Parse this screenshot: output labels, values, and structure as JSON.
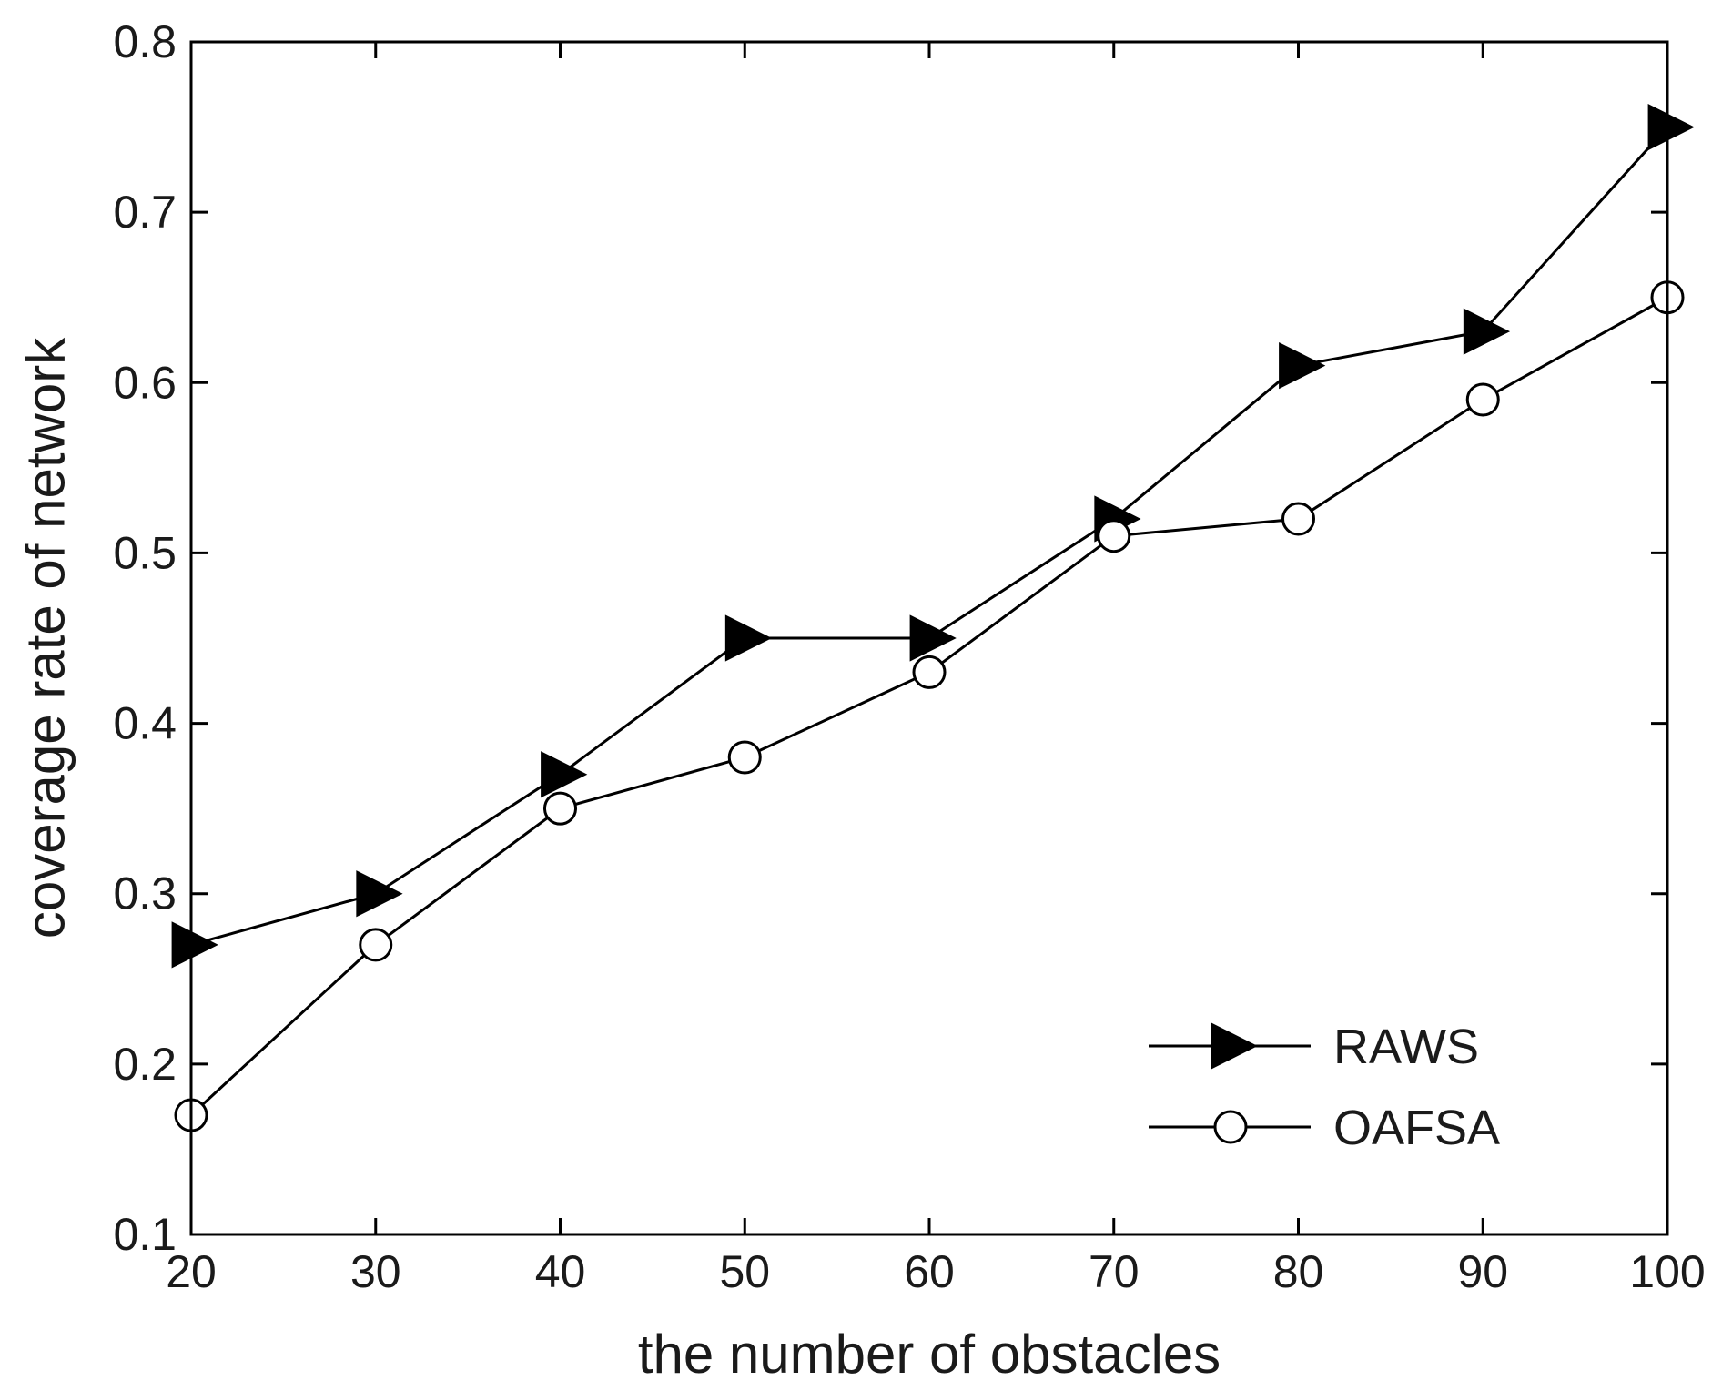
{
  "chart_data": {
    "type": "line",
    "title": "",
    "xlabel": "the number of obstacles",
    "ylabel": "coverage rate of network",
    "x": [
      20,
      30,
      40,
      50,
      60,
      70,
      80,
      90,
      100
    ],
    "xlim": [
      20,
      100
    ],
    "ylim": [
      0.1,
      0.8
    ],
    "xticks": [
      "20",
      "30",
      "40",
      "50",
      "60",
      "70",
      "80",
      "90",
      "100"
    ],
    "yticks": [
      "0.1",
      "0.2",
      "0.3",
      "0.4",
      "0.5",
      "0.6",
      "0.7",
      "0.8"
    ],
    "grid": false,
    "legend_position": "bottom-right",
    "series": [
      {
        "name": "RAWS",
        "marker": "triangle-right-filled",
        "color": "#000000",
        "values": [
          0.27,
          0.3,
          0.37,
          0.45,
          0.45,
          0.52,
          0.61,
          0.63,
          0.75
        ]
      },
      {
        "name": "OAFSA",
        "marker": "circle-open",
        "color": "#000000",
        "values": [
          0.17,
          0.27,
          0.35,
          0.38,
          0.43,
          0.51,
          0.52,
          0.59,
          0.65
        ]
      }
    ]
  }
}
